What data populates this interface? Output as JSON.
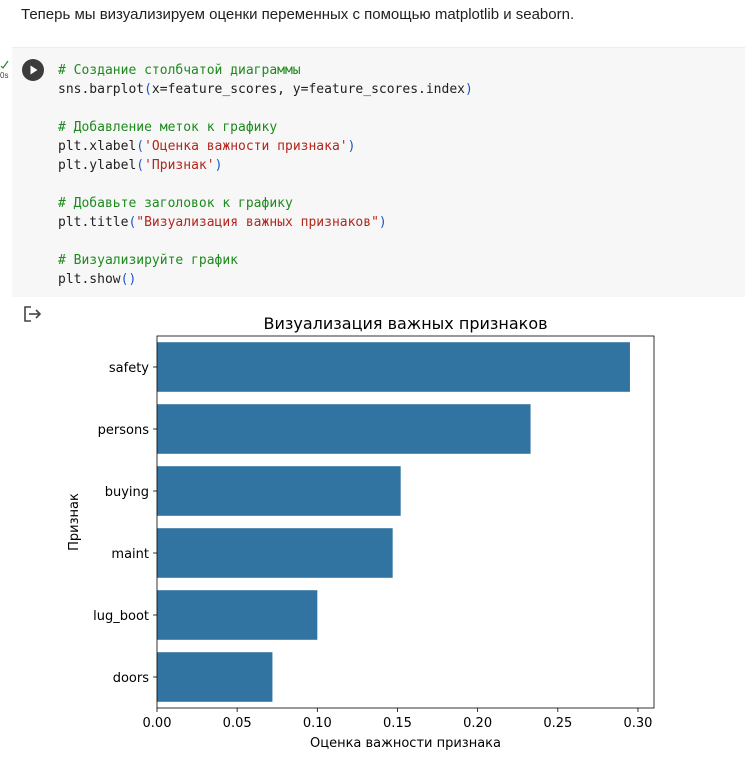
{
  "markdown": {
    "text": "Теперь мы визуализируем оценки переменных с помощью matplotlib и seaborn."
  },
  "cell": {
    "exec_time": "0s",
    "code_lines": [
      [
        {
          "t": "# Создание столбчатой диаграммы",
          "c": "comment"
        }
      ],
      [
        {
          "t": "sns.barplot",
          "c": "plain"
        },
        {
          "t": "(",
          "c": "paren"
        },
        {
          "t": "x=feature_scores, y=feature_scores.index",
          "c": "plain"
        },
        {
          "t": ")",
          "c": "paren"
        }
      ],
      [],
      [
        {
          "t": "# Добавление меток к графику",
          "c": "comment"
        }
      ],
      [
        {
          "t": "plt.xlabel",
          "c": "plain"
        },
        {
          "t": "(",
          "c": "paren"
        },
        {
          "t": "'Оценка важности признака'",
          "c": "str"
        },
        {
          "t": ")",
          "c": "paren"
        }
      ],
      [
        {
          "t": "plt.ylabel",
          "c": "plain"
        },
        {
          "t": "(",
          "c": "paren"
        },
        {
          "t": "'Признак'",
          "c": "str"
        },
        {
          "t": ")",
          "c": "paren"
        }
      ],
      [],
      [
        {
          "t": "# Добавьте заголовок к графику",
          "c": "comment"
        }
      ],
      [
        {
          "t": "plt.title",
          "c": "plain"
        },
        {
          "t": "(",
          "c": "paren"
        },
        {
          "t": "\"Визуализация важных признаков\"",
          "c": "str"
        },
        {
          "t": ")",
          "c": "paren"
        }
      ],
      [],
      [
        {
          "t": "# Визуализируйте график",
          "c": "comment"
        }
      ],
      [
        {
          "t": "plt.show",
          "c": "plain"
        },
        {
          "t": "()",
          "c": "paren"
        }
      ]
    ]
  },
  "icons": {
    "run": "play-icon",
    "status": "check-icon",
    "output": "output-redirect-icon"
  },
  "colors": {
    "bar": "#3274a1",
    "comment": "#1e8a1e",
    "string": "#b3261e",
    "paren": "#1f56c7"
  },
  "chart_data": {
    "type": "bar",
    "orientation": "horizontal",
    "title": "Визуализация важных признаков",
    "xlabel": "Оценка важности признака",
    "ylabel": "Признак",
    "categories": [
      "safety",
      "persons",
      "buying",
      "maint",
      "lug_boot",
      "doors"
    ],
    "values": [
      0.295,
      0.233,
      0.152,
      0.147,
      0.1,
      0.072
    ],
    "xlim": [
      0,
      0.31
    ],
    "xticks": [
      0,
      0.05,
      0.1,
      0.15,
      0.2,
      0.25,
      0.3
    ],
    "xtick_labels": [
      "0.00",
      "0.05",
      "0.10",
      "0.15",
      "0.20",
      "0.25",
      "0.30"
    ],
    "grid": false,
    "legend": "none"
  }
}
